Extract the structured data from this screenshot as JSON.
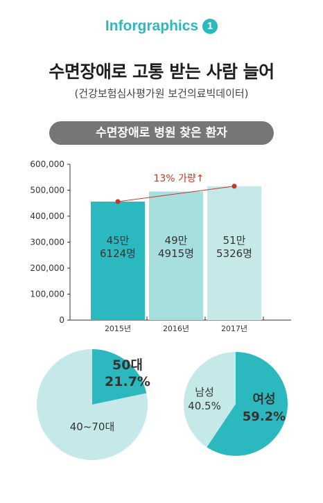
{
  "header": {
    "brand": "Inforgraphics",
    "number": "1"
  },
  "title": "수면장애로 고통 받는 사람 늘어",
  "source": "(건강보험심사평가원 보건의료빅데이터)",
  "pill": "수면장애로 병원 찾은 환자",
  "colors": {
    "accent": "#2bb8bf",
    "pill": "#767676",
    "annotation": "#c0392b"
  },
  "chart_data": [
    {
      "type": "bar",
      "title": "수면장애로 병원 찾은 환자",
      "categories": [
        "2015년",
        "2016년",
        "2017년"
      ],
      "values": [
        456124,
        494915,
        515326
      ],
      "bar_labels": [
        [
          "45만",
          "6124명"
        ],
        [
          "49만",
          "4915명"
        ],
        [
          "51만",
          "5326명"
        ]
      ],
      "bar_colors": [
        "#2bb8bf",
        "#a7dede",
        "#c5e8e8"
      ],
      "ylim": [
        0,
        600000
      ],
      "yticks": [
        "0",
        "100,000",
        "200,000",
        "300,000",
        "400,000",
        "500,000",
        "600,000"
      ],
      "trend_line": true,
      "annotation": "13% 가량↑",
      "grid": false
    },
    {
      "type": "pie",
      "slices": [
        {
          "label": "50대",
          "value": 21.7,
          "value_text": "21.7%",
          "color": "#2bb8bf"
        },
        {
          "label": "40~70대",
          "value": 78.3,
          "value_text": "",
          "color": "#c5e8e8"
        }
      ]
    },
    {
      "type": "pie",
      "slices": [
        {
          "label": "여성",
          "value": 59.2,
          "value_text": "59.2%",
          "color": "#2bb8bf"
        },
        {
          "label": "남성",
          "value": 40.5,
          "value_text": "40.5%",
          "color": "#c5e8e8"
        }
      ]
    }
  ]
}
